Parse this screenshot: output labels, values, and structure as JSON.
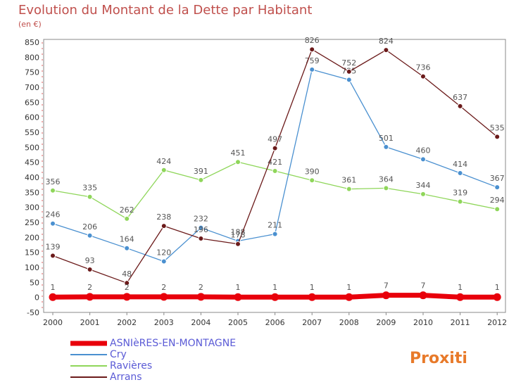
{
  "title": "Evolution du Montant de la Dette par Habitant",
  "subtitle": "(en €)",
  "logo_text": "Proxiti",
  "chart_data": {
    "type": "line",
    "title": "Evolution du Montant de la Dette par Habitant",
    "subtitle": "(en €)",
    "x": [
      "2000",
      "2001",
      "2002",
      "2003",
      "2004",
      "2005",
      "2006",
      "2007",
      "2008",
      "2009",
      "2010",
      "2011",
      "2012"
    ],
    "ylim": [
      -50,
      850
    ],
    "yticks": [
      -50,
      0,
      50,
      100,
      150,
      200,
      250,
      300,
      350,
      400,
      450,
      500,
      550,
      600,
      650,
      700,
      750,
      800,
      850
    ],
    "grid": false,
    "legend_position": "bottom-left",
    "series": [
      {
        "name": "ASNIèRES-EN-MONTAGNE",
        "color": "#e8000b",
        "values": [
          1,
          2,
          2,
          2,
          2,
          1,
          1,
          1,
          1,
          7,
          7,
          1,
          1
        ]
      },
      {
        "name": "Cry",
        "color": "#4a90d0",
        "values": [
          246,
          206,
          164,
          120,
          232,
          188,
          211,
          759,
          725,
          501,
          460,
          414,
          367
        ]
      },
      {
        "name": "Ravières",
        "color": "#8fd65a",
        "values": [
          356,
          335,
          262,
          424,
          391,
          451,
          421,
          390,
          361,
          364,
          344,
          319,
          294
        ]
      },
      {
        "name": "Arrans",
        "color": "#6b1a1a",
        "values": [
          139,
          93,
          48,
          238,
          196,
          178,
          497,
          826,
          752,
          824,
          736,
          637,
          535
        ]
      }
    ]
  }
}
